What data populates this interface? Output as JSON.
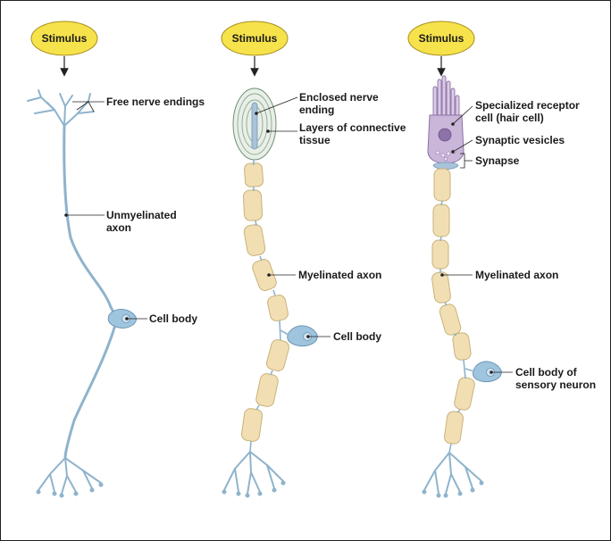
{
  "stimulus": [
    "Stimulus",
    "Stimulus",
    "Stimulus"
  ],
  "panel1": {
    "free_nerve_endings": "Free nerve endings",
    "unmyelinated_axon": [
      "Unmyelinated",
      "axon"
    ],
    "cell_body": "Cell body"
  },
  "panel2": {
    "enclosed_nerve_ending": [
      "Enclosed nerve",
      "ending"
    ],
    "connective_tissue": [
      "Layers of connective",
      "tissue"
    ],
    "myelinated_axon": "Myelinated axon",
    "cell_body": "Cell body"
  },
  "panel3": {
    "receptor_cell": [
      "Specialized receptor",
      "cell (hair cell)"
    ],
    "synaptic_vesicles": "Synaptic vesicles",
    "synapse": "Synapse",
    "myelinated_axon": "Myelinated axon",
    "cell_body": [
      "Cell body of",
      "sensory neuron"
    ]
  },
  "colors": {
    "stimulus_fill": "#f6e24a",
    "axon": "#8fb3cc",
    "myelin": "#f1dfb3",
    "cell_body": "#9fc4de",
    "hair_cell": "#c9b6d8"
  }
}
